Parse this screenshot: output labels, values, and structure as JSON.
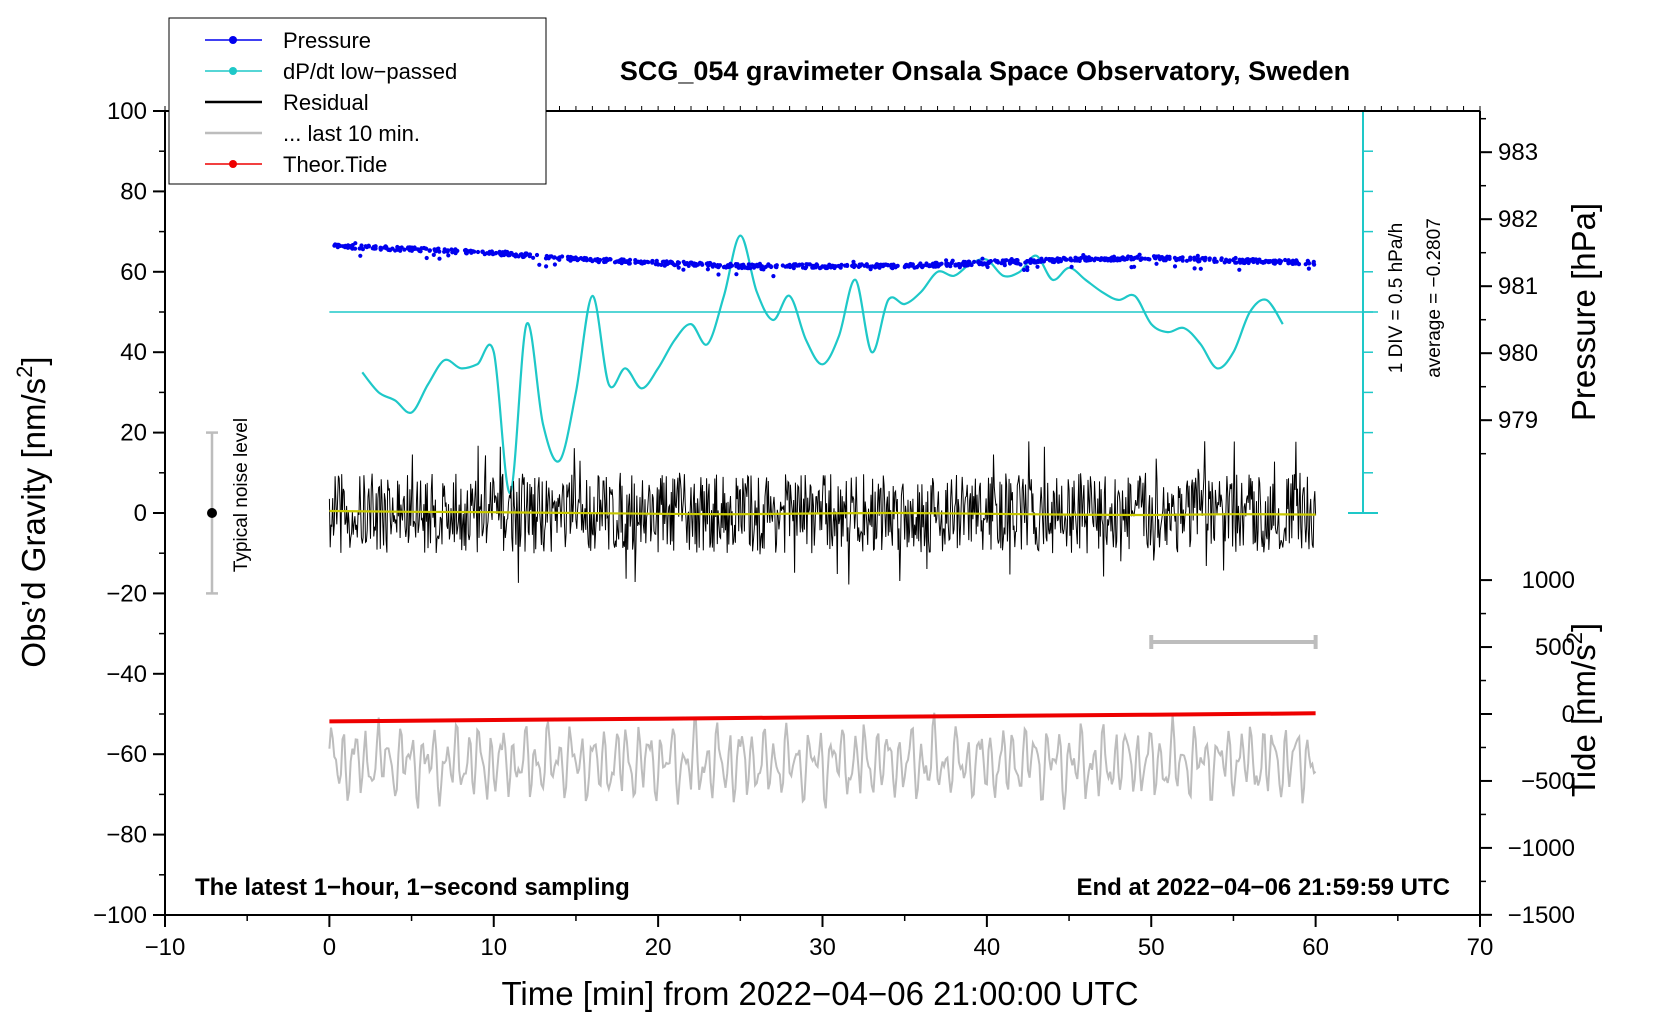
{
  "chart_data": {
    "type": "line",
    "title": "SCG_054 gravimeter Onsala Space Observatory, Sweden",
    "xlabel": "Time [min] from 2022−04−06 21:00:00 UTC",
    "ylabel_left": "Obs’d Gravity [nm/s²]",
    "ylabel_pressure": "Pressure [hPa]",
    "ylabel_tide": "Tide [nm/s²]",
    "xlim": [
      -10,
      70
    ],
    "ylim": [
      -100,
      100
    ],
    "x_ticks": [
      "−10",
      "0",
      "10",
      "20",
      "30",
      "40",
      "50",
      "60",
      "70"
    ],
    "x_tick_values": [
      -10,
      0,
      10,
      20,
      30,
      40,
      50,
      60,
      70
    ],
    "y_ticks": [
      "100",
      "80",
      "60",
      "40",
      "20",
      "0",
      "−20",
      "−40",
      "−60",
      "−80",
      "−100"
    ],
    "y_tick_values": [
      100,
      80,
      60,
      40,
      20,
      0,
      -20,
      -40,
      -60,
      -80,
      -100
    ],
    "pressure_ticks": [
      "983",
      "982",
      "981",
      "980",
      "979"
    ],
    "pressure_tick_values": [
      983,
      982,
      981,
      980,
      979
    ],
    "tide_ticks": [
      "1000",
      "500",
      "0",
      "−500",
      "−1000",
      "−1500"
    ],
    "tide_tick_values": [
      1000,
      500,
      0,
      -500,
      -1000,
      -1500
    ],
    "legend": [
      {
        "label": "Pressure",
        "color": "#0000ee",
        "marker": "dot"
      },
      {
        "label": "dP/dt low−passed",
        "color": "#1ec8c8",
        "marker": "dot"
      },
      {
        "label": "Residual",
        "color": "#000000",
        "marker": "none"
      },
      {
        "label": "... last 10 min.",
        "color": "#bdbdbd",
        "marker": "none"
      },
      {
        "label": "Theor.Tide",
        "color": "#ee0000",
        "marker": "dot"
      }
    ],
    "annotations": {
      "noise_label": "Typical noise level",
      "noise_range": [
        -20,
        20
      ],
      "div_label": "1 DIV = 0.5 hPa/h",
      "average_label": "average = −0.2807",
      "bottom_left": "The latest 1−hour, 1−second sampling",
      "bottom_right": "End at 2022−04−06 21:59:59 UTC",
      "last10_range": [
        50,
        60
      ]
    },
    "series": [
      {
        "name": "Pressure",
        "axis": "pressure_hPa",
        "x": [
          0,
          5,
          10,
          15,
          20,
          25,
          30,
          35,
          40,
          45,
          50,
          55,
          60
        ],
        "values": [
          981.6,
          981.55,
          981.5,
          981.4,
          981.35,
          981.3,
          981.3,
          981.3,
          981.35,
          981.4,
          981.42,
          981.38,
          981.35
        ]
      },
      {
        "name": "dP/dt low−passed",
        "axis": "gravity_scale",
        "baseline": 50,
        "x": [
          2,
          3,
          4,
          5,
          6,
          7,
          8,
          9,
          10,
          11,
          12,
          13,
          14,
          15,
          16,
          17,
          18,
          19,
          20,
          21,
          22,
          23,
          24,
          25,
          26,
          27,
          28,
          29,
          30,
          31,
          32,
          33,
          34,
          35,
          36,
          37,
          38,
          39,
          40,
          41,
          42,
          43,
          44,
          45,
          46,
          47,
          48,
          49,
          50,
          51,
          52,
          53,
          54,
          55,
          56,
          57,
          58
        ],
        "values": [
          35,
          30,
          28,
          25,
          32,
          38,
          36,
          37,
          40,
          5,
          47,
          22,
          13,
          30,
          54,
          32,
          36,
          31,
          36,
          43,
          47,
          42,
          54,
          69,
          55,
          48,
          54,
          43,
          37,
          44,
          58,
          40,
          53,
          52,
          55,
          60,
          59,
          62,
          63,
          59,
          60,
          64,
          58,
          61,
          58,
          55,
          53,
          54,
          47,
          45,
          46,
          42,
          36,
          40,
          50,
          53,
          47
        ]
      },
      {
        "name": "Residual",
        "axis": "gravity",
        "amplitude": 10,
        "x_range": [
          0,
          60
        ],
        "smoothed_values": [
          0.5,
          0.3,
          0.2,
          0.0,
          -0.2,
          -0.3,
          -0.1,
          0.0,
          -0.2,
          -0.4,
          -0.5,
          -0.3,
          -0.4
        ]
      },
      {
        "name": "... last 10 min.",
        "axis": "gravity_scale",
        "center": -62,
        "amplitude": 10,
        "x_range": [
          0,
          60
        ]
      },
      {
        "name": "Theor.Tide",
        "axis": "tide_nm_s2",
        "x": [
          0,
          10,
          20,
          30,
          40,
          50,
          60
        ],
        "values": [
          -55,
          -45,
          -35,
          -25,
          -15,
          -5,
          5
        ]
      }
    ]
  }
}
